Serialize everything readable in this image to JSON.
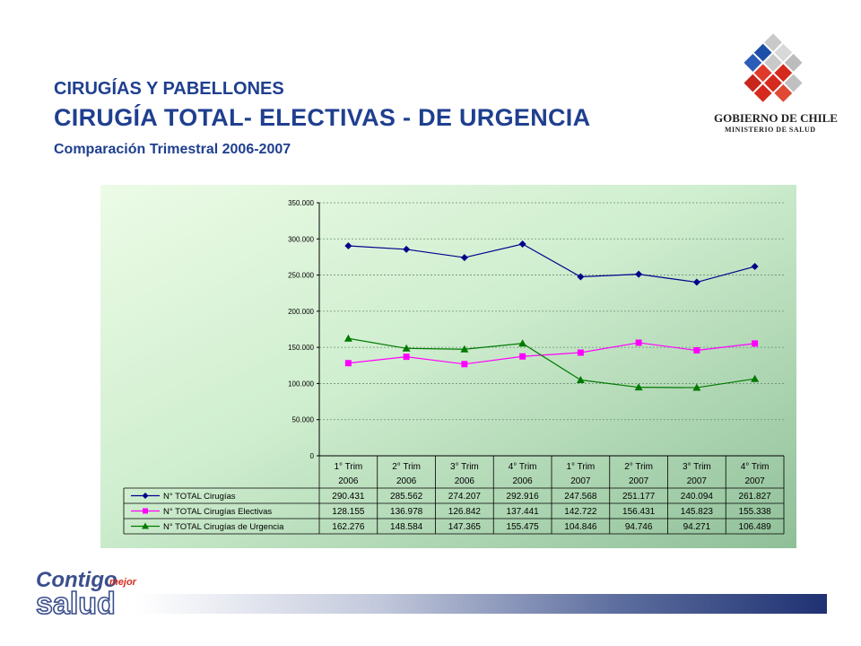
{
  "header": {
    "line1": "CIRUGÍAS Y PABELLONES",
    "line2": "CIRUGÍA TOTAL- ELECTIVAS - DE URGENCIA",
    "line3": "Comparación Trimestral 2006-2007"
  },
  "logo": {
    "gov_line1": "GOBIERNO DE CHILE",
    "gov_line2": "MINISTERIO DE SALUD",
    "brand_word1": "Contigo",
    "brand_word2": "mejor",
    "brand_word3": "salud"
  },
  "colors": {
    "title": "#1f3f8f",
    "series_total": "#00008b",
    "series_electivas": "#ff00ff",
    "series_urgencia": "#007a00",
    "plot_bg_light": "#e6fbdf",
    "plot_bg_dark": "#93c49c"
  },
  "chart_data": {
    "type": "line",
    "categories": [
      [
        "1° Trim",
        "2006"
      ],
      [
        "2° Trim",
        "2006"
      ],
      [
        "3° Trim",
        "2006"
      ],
      [
        "4° Trim",
        "2006"
      ],
      [
        "1° Trim",
        "2007"
      ],
      [
        "2° Trim",
        "2007"
      ],
      [
        "3° Trim",
        "2007"
      ],
      [
        "4° Trim",
        "2007"
      ]
    ],
    "y_ticks": [
      "350.000",
      "300.000",
      "250.000",
      "200.000",
      "150.000",
      "100.000",
      "50.000",
      "0"
    ],
    "ylim": [
      0,
      350000
    ],
    "grid": true,
    "legend": "data table below plot",
    "series": [
      {
        "name": "N° TOTAL Cirugías",
        "marker": "diamond",
        "values": [
          290431,
          285562,
          274207,
          292916,
          247568,
          251177,
          240094,
          261827
        ],
        "labels": [
          "290.431",
          "285.562",
          "274.207",
          "292.916",
          "247.568",
          "251.177",
          "240.094",
          "261.827"
        ]
      },
      {
        "name": "N° TOTAL Cirugías Electivas",
        "marker": "square",
        "values": [
          128155,
          136978,
          126842,
          137441,
          142722,
          156431,
          145823,
          155338
        ],
        "labels": [
          "128.155",
          "136.978",
          "126.842",
          "137.441",
          "142.722",
          "156.431",
          "145.823",
          "155.338"
        ]
      },
      {
        "name": "N° TOTAL Cirugías de Urgencia",
        "marker": "triangle",
        "values": [
          162276,
          148584,
          147365,
          155475,
          104846,
          94746,
          94271,
          106489
        ],
        "labels": [
          "162.276",
          "148.584",
          "147.365",
          "155.475",
          "104.846",
          "94.746",
          "94.271",
          "106.489"
        ]
      }
    ]
  }
}
